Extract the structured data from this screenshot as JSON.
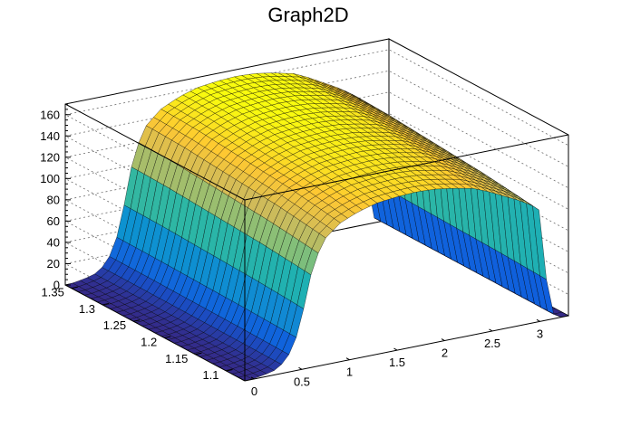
{
  "chart_data": {
    "type": "surface3d",
    "title": "Graph2D",
    "xlabel": "",
    "ylabel": "",
    "zlabel": "",
    "xlim": [
      -0.1,
      3.3
    ],
    "ylim": [
      1.07,
      1.36
    ],
    "zlim": [
      0,
      170
    ],
    "x_ticks": [
      0,
      0.5,
      1,
      1.5,
      2,
      2.5,
      3
    ],
    "y_ticks": [
      1.1,
      1.15,
      1.2,
      1.25,
      1.3,
      1.35
    ],
    "z_ticks": [
      0,
      20,
      40,
      60,
      80,
      100,
      120,
      140,
      160
    ],
    "x_tick_labels": [
      "0",
      "0.5",
      "1",
      "1.5",
      "2",
      "2.5",
      "3"
    ],
    "y_tick_labels": [
      "1.1",
      "1.15",
      "1.2",
      "1.25",
      "1.3",
      "1.35"
    ],
    "z_tick_labels": [
      "0",
      "20",
      "40",
      "60",
      "80",
      "100",
      "120",
      "140",
      "160"
    ],
    "x_profile": {
      "x": [
        -0.05,
        0.1,
        0.2,
        0.3,
        0.4,
        0.5,
        0.55,
        0.6,
        0.65,
        0.75,
        0.9,
        1.1,
        1.3,
        1.5,
        1.7,
        1.9,
        2.1,
        2.3,
        2.45,
        2.6,
        2.75,
        2.9,
        3.0,
        3.05,
        3.1,
        3.2
      ],
      "z": [
        0,
        2,
        4,
        10,
        22,
        50,
        80,
        95,
        110,
        128,
        140,
        148,
        153,
        155,
        156,
        155,
        152,
        148,
        142,
        135,
        128,
        120,
        112,
        60,
        8,
        0
      ]
    },
    "y_profile": {
      "y": [
        1.07,
        1.1,
        1.15,
        1.2,
        1.25,
        1.3,
        1.35,
        1.36
      ],
      "factor": [
        0.93,
        0.95,
        0.98,
        1.0,
        1.02,
        1.04,
        1.05,
        1.05
      ]
    },
    "colormap": [
      "#352a87",
      "#0f5cdd",
      "#1481d6",
      "#06a4ca",
      "#2eb7a4",
      "#87bf77",
      "#d1bb59",
      "#fec832",
      "#f9fb0e"
    ]
  }
}
